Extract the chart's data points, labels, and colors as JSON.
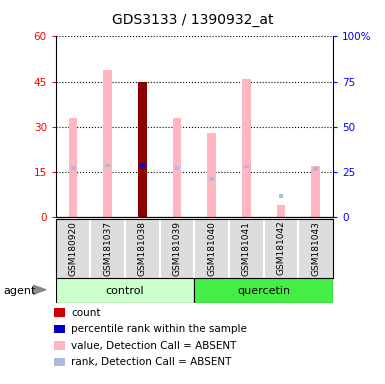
{
  "title": "GDS3133 / 1390932_at",
  "samples": [
    "GSM180920",
    "GSM181037",
    "GSM181038",
    "GSM181039",
    "GSM181040",
    "GSM181041",
    "GSM181042",
    "GSM181043"
  ],
  "value_absent": [
    33,
    49,
    45,
    33,
    28,
    46,
    4,
    17
  ],
  "rank_absent": [
    27,
    28.5,
    28.5,
    27,
    21,
    28,
    11.5,
    26.5
  ],
  "count_present": [
    0,
    0,
    45,
    0,
    0,
    0,
    0,
    0
  ],
  "percentile_present": [
    0,
    0,
    28.5,
    0,
    0,
    0,
    0,
    0
  ],
  "ylim_left": [
    0,
    60
  ],
  "ylim_right": [
    0,
    100
  ],
  "yticks_left": [
    0,
    15,
    30,
    45,
    60
  ],
  "yticks_right": [
    0,
    25,
    50,
    75,
    100
  ],
  "ytick_labels_left": [
    "0",
    "15",
    "30",
    "45",
    "60"
  ],
  "ytick_labels_right": [
    "0",
    "25",
    "50",
    "75",
    "100%"
  ],
  "color_count": "#8B0000",
  "color_percentile": "#0000CC",
  "color_value_absent": "#FFB6C1",
  "color_rank_absent": "#AABBDD",
  "bar_width": 0.25,
  "control_color": "#CCFFCC",
  "quercetin_color": "#44EE44",
  "agent_label": "agent",
  "legend_items": [
    {
      "label": "count",
      "color": "#CC0000"
    },
    {
      "label": "percentile rank within the sample",
      "color": "#0000CC"
    },
    {
      "label": "value, Detection Call = ABSENT",
      "color": "#FFB6C1"
    },
    {
      "label": "rank, Detection Call = ABSENT",
      "color": "#AABBDD"
    }
  ]
}
